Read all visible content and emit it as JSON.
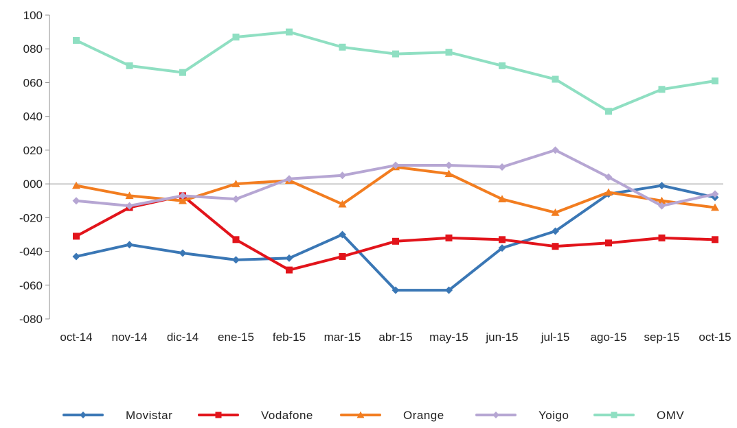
{
  "chart_data": {
    "type": "line",
    "title": "",
    "xlabel": "",
    "ylabel": "",
    "categories": [
      "oct-14",
      "nov-14",
      "dic-14",
      "ene-15",
      "feb-15",
      "mar-15",
      "abr-15",
      "may-15",
      "jun-15",
      "jul-15",
      "ago-15",
      "sep-15",
      "oct-15"
    ],
    "ylim": [
      -80,
      100
    ],
    "yticks": [
      100,
      80,
      60,
      40,
      20,
      0,
      -20,
      -40,
      -60,
      -80
    ],
    "ytick_labels": [
      "100",
      "080",
      "060",
      "040",
      "020",
      "000",
      "-020",
      "-040",
      "-060",
      "-080"
    ],
    "grid": false,
    "zero_line": true,
    "legend_position": "bottom",
    "series": [
      {
        "name": "Movistar",
        "color": "#3a77b5",
        "marker": "diamond",
        "values": [
          -43,
          -36,
          -41,
          -45,
          -44,
          -30,
          -63,
          -63,
          -38,
          -28,
          -6,
          -1,
          -8
        ]
      },
      {
        "name": "Vodafone",
        "color": "#e2141b",
        "marker": "square",
        "values": [
          -31,
          -14,
          -7,
          -33,
          -51,
          -43,
          -34,
          -32,
          -33,
          -37,
          -35,
          -32,
          -33
        ]
      },
      {
        "name": "Orange",
        "color": "#f27d20",
        "marker": "triangle",
        "values": [
          -1,
          -7,
          -10,
          0,
          2,
          -12,
          10,
          6,
          -9,
          -17,
          -5,
          -10,
          -14
        ]
      },
      {
        "name": "Yoigo",
        "color": "#b6a6d3",
        "marker": "diamond",
        "values": [
          -10,
          -13,
          -7,
          -9,
          3,
          5,
          11,
          11,
          10,
          20,
          4,
          -13,
          -6
        ]
      },
      {
        "name": "OMV",
        "color": "#8fdfc2",
        "marker": "square",
        "values": [
          85,
          70,
          66,
          87,
          90,
          81,
          77,
          78,
          70,
          62,
          43,
          56,
          61
        ]
      }
    ]
  }
}
